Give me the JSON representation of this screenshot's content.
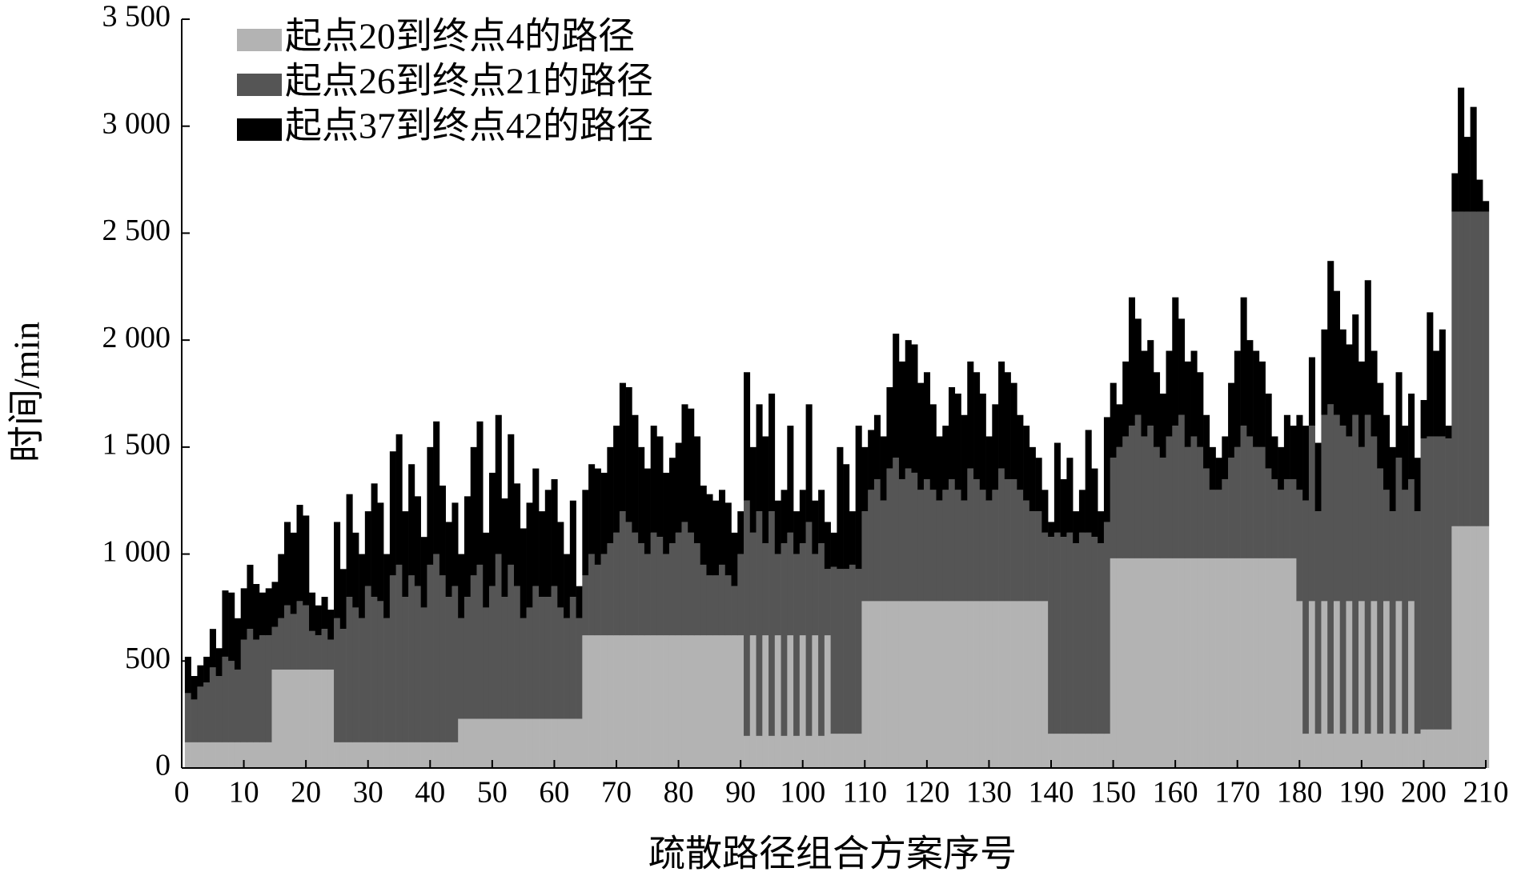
{
  "chart_data": {
    "type": "stacked_bar",
    "xlabel": "疏散路径组合方案序号",
    "ylabel": "时间/min",
    "x": [
      1,
      2,
      3,
      4,
      5,
      6,
      7,
      8,
      9,
      10,
      11,
      12,
      13,
      14,
      15,
      16,
      17,
      18,
      19,
      20,
      21,
      22,
      23,
      24,
      25,
      26,
      27,
      28,
      29,
      30,
      31,
      32,
      33,
      34,
      35,
      36,
      37,
      38,
      39,
      40,
      41,
      42,
      43,
      44,
      45,
      46,
      47,
      48,
      49,
      50,
      51,
      52,
      53,
      54,
      55,
      56,
      57,
      58,
      59,
      60,
      61,
      62,
      63,
      64,
      65,
      66,
      67,
      68,
      69,
      70,
      71,
      72,
      73,
      74,
      75,
      76,
      77,
      78,
      79,
      80,
      81,
      82,
      83,
      84,
      85,
      86,
      87,
      88,
      89,
      90,
      91,
      92,
      93,
      94,
      95,
      96,
      97,
      98,
      99,
      100,
      101,
      102,
      103,
      104,
      105,
      106,
      107,
      108,
      109,
      110,
      111,
      112,
      113,
      114,
      115,
      116,
      117,
      118,
      119,
      120,
      121,
      122,
      123,
      124,
      125,
      126,
      127,
      128,
      129,
      130,
      131,
      132,
      133,
      134,
      135,
      136,
      137,
      138,
      139,
      140,
      141,
      142,
      143,
      144,
      145,
      146,
      147,
      148,
      149,
      150,
      151,
      152,
      153,
      154,
      155,
      156,
      157,
      158,
      159,
      160,
      161,
      162,
      163,
      164,
      165,
      166,
      167,
      168,
      169,
      170,
      171,
      172,
      173,
      174,
      175,
      176,
      177,
      178,
      179,
      180,
      181,
      182,
      183,
      184,
      185,
      186,
      187,
      188,
      189,
      190,
      191,
      192,
      193,
      194,
      195,
      196,
      197,
      198,
      199,
      200,
      201,
      202,
      203,
      204,
      205,
      206,
      207,
      208,
      209,
      210
    ],
    "series": [
      {
        "name": "起点20到终点4的路径",
        "color": "#b3b3b3",
        "values": [
          120,
          120,
          120,
          120,
          120,
          120,
          120,
          120,
          120,
          120,
          120,
          120,
          120,
          120,
          460,
          460,
          460,
          460,
          460,
          460,
          460,
          460,
          460,
          460,
          120,
          120,
          120,
          120,
          120,
          120,
          120,
          120,
          120,
          120,
          120,
          120,
          120,
          120,
          120,
          120,
          120,
          120,
          120,
          120,
          230,
          230,
          230,
          230,
          230,
          230,
          230,
          230,
          230,
          230,
          230,
          230,
          230,
          230,
          230,
          230,
          230,
          230,
          230,
          230,
          620,
          620,
          620,
          620,
          620,
          620,
          620,
          620,
          620,
          620,
          620,
          620,
          620,
          620,
          620,
          620,
          620,
          620,
          620,
          620,
          620,
          620,
          620,
          620,
          620,
          620,
          150,
          620,
          150,
          620,
          150,
          620,
          150,
          620,
          150,
          620,
          150,
          620,
          150,
          620,
          160,
          160,
          160,
          160,
          160,
          780,
          780,
          780,
          780,
          780,
          780,
          780,
          780,
          780,
          780,
          780,
          780,
          780,
          780,
          780,
          780,
          780,
          780,
          780,
          780,
          780,
          780,
          780,
          780,
          780,
          780,
          780,
          780,
          780,
          780,
          160,
          160,
          160,
          160,
          160,
          160,
          160,
          160,
          160,
          160,
          980,
          980,
          980,
          980,
          980,
          980,
          980,
          980,
          980,
          980,
          980,
          980,
          980,
          980,
          980,
          980,
          980,
          980,
          980,
          980,
          980,
          980,
          980,
          980,
          980,
          980,
          980,
          980,
          980,
          980,
          780,
          160,
          780,
          160,
          780,
          160,
          780,
          160,
          780,
          160,
          780,
          160,
          780,
          160,
          780,
          160,
          780,
          160,
          780,
          160,
          180,
          180,
          180,
          180,
          180,
          1130,
          1130,
          1130,
          1130,
          1130,
          1130
        ]
      },
      {
        "name": "起点26到终点21的路径",
        "color": "#555555",
        "values": [
          230,
          200,
          260,
          280,
          350,
          310,
          400,
          380,
          340,
          480,
          530,
          480,
          500,
          500,
          200,
          240,
          300,
          260,
          320,
          300,
          180,
          160,
          190,
          140,
          580,
          530,
          680,
          630,
          580,
          730,
          680,
          660,
          580,
          780,
          830,
          680,
          780,
          730,
          630,
          830,
          880,
          780,
          680,
          730,
          470,
          570,
          670,
          720,
          520,
          620,
          770,
          570,
          720,
          620,
          470,
          520,
          620,
          570,
          570,
          620,
          520,
          470,
          570,
          470,
          280,
          380,
          330,
          380,
          430,
          480,
          580,
          530,
          480,
          430,
          380,
          480,
          460,
          380,
          430,
          480,
          530,
          480,
          430,
          330,
          280,
          280,
          330,
          280,
          230,
          380,
          1100,
          480,
          1050,
          430,
          1050,
          380,
          900,
          480,
          850,
          430,
          1000,
          380,
          900,
          310,
          780,
          770,
          770,
          790,
          770,
          420,
          520,
          570,
          470,
          620,
          670,
          570,
          620,
          600,
          520,
          570,
          520,
          470,
          520,
          570,
          520,
          470,
          620,
          570,
          520,
          470,
          520,
          620,
          570,
          570,
          520,
          470,
          420,
          420,
          320,
          920,
          940,
          920,
          940,
          890,
          940,
          940,
          920,
          890,
          990,
          470,
          520,
          570,
          620,
          670,
          570,
          620,
          520,
          470,
          570,
          620,
          670,
          520,
          570,
          520,
          420,
          320,
          320,
          370,
          470,
          520,
          620,
          570,
          520,
          520,
          420,
          370,
          320,
          370,
          370,
          520,
          1090,
          820,
          1040,
          870,
          1540,
          870,
          1440,
          770,
          1490,
          720,
          1490,
          770,
          1240,
          520,
          1040,
          670,
          1140,
          570,
          1040,
          1360,
          1370,
          1370,
          1370,
          1360,
          1470,
          1470,
          1470,
          1470,
          1470,
          1470
        ]
      },
      {
        "name": "起点37到终点42的路径",
        "color": "#000000",
        "values": [
          170,
          110,
          100,
          120,
          180,
          130,
          310,
          320,
          240,
          240,
          300,
          260,
          200,
          220,
          210,
          300,
          390,
          380,
          450,
          420,
          180,
          140,
          150,
          140,
          450,
          280,
          480,
          350,
          300,
          350,
          530,
          460,
          300,
          580,
          610,
          400,
          520,
          420,
          330,
          550,
          620,
          420,
          350,
          390,
          300,
          470,
          600,
          670,
          350,
          530,
          650,
          460,
          610,
          480,
          420,
          490,
          550,
          400,
          500,
          500,
          400,
          300,
          450,
          150,
          400,
          420,
          450,
          380,
          450,
          500,
          600,
          630,
          550,
          450,
          400,
          500,
          470,
          380,
          400,
          420,
          550,
          580,
          500,
          370,
          380,
          350,
          350,
          340,
          250,
          200,
          600,
          400,
          500,
          500,
          550,
          250,
          250,
          500,
          200,
          250,
          550,
          250,
          250,
          220,
          160,
          570,
          490,
          250,
          670,
          300,
          280,
          300,
          300,
          380,
          580,
          550,
          600,
          600,
          500,
          500,
          400,
          300,
          300,
          430,
          450,
          400,
          500,
          500,
          450,
          300,
          400,
          500,
          500,
          450,
          350,
          350,
          300,
          250,
          200,
          70,
          420,
          270,
          350,
          150,
          200,
          480,
          320,
          150,
          490,
          350,
          200,
          350,
          600,
          450,
          400,
          400,
          350,
          300,
          400,
          600,
          450,
          400,
          400,
          350,
          250,
          200,
          150,
          200,
          350,
          450,
          600,
          450,
          450,
          400,
          350,
          200,
          200,
          300,
          250,
          350,
          350,
          320,
          320,
          400,
          670,
          580,
          450,
          430,
          470,
          400,
          630,
          400,
          400,
          350,
          300,
          400,
          300,
          400,
          250,
          180,
          580,
          400,
          500,
          60,
          180,
          580,
          350,
          490,
          150,
          50
        ]
      }
    ],
    "xlim": [
      0,
      210
    ],
    "xticks": [
      0,
      10,
      20,
      30,
      40,
      50,
      60,
      70,
      80,
      90,
      100,
      110,
      120,
      130,
      140,
      150,
      160,
      170,
      180,
      190,
      200,
      210
    ],
    "ylim": [
      0,
      3500
    ],
    "yticks": [
      0,
      500,
      {
        "value": 1000,
        "label": "1 000"
      },
      {
        "value": 1500,
        "label": "1 500"
      },
      {
        "value": 2000,
        "label": "2 000"
      },
      {
        "value": 2500,
        "label": "2 500"
      },
      {
        "value": 3000,
        "label": "3 000"
      },
      {
        "value": 3500,
        "label": "3 500"
      }
    ],
    "legend": "upper left",
    "grid": false
  }
}
